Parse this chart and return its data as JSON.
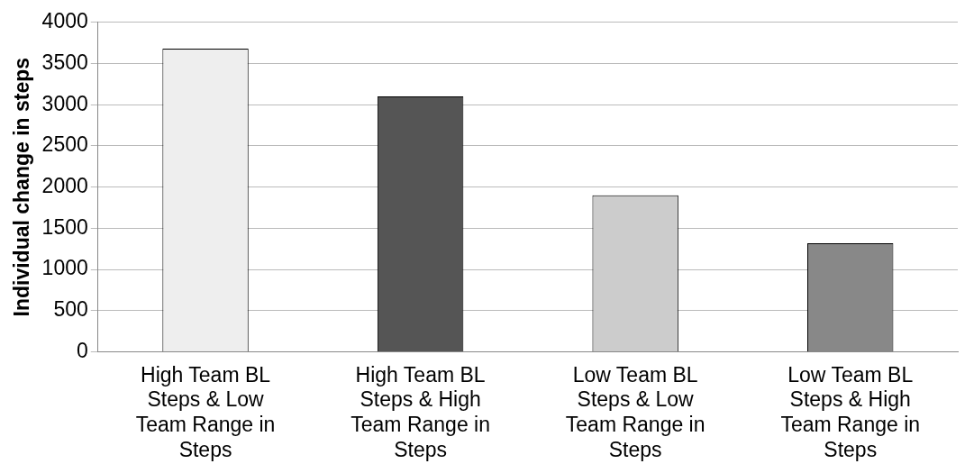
{
  "chart_data": {
    "type": "bar",
    "ylabel": "Individual change in steps",
    "categories": [
      "High Team BL Steps & Low Team Range in Steps",
      "High Team BL Steps & High Team Range in Steps",
      "Low Team BL Steps & Low Team Range in Steps",
      "Low Team BL Steps & High Team Range in Steps"
    ],
    "values": [
      3680,
      3100,
      1900,
      1320
    ],
    "colors": [
      "#eeeeee",
      "#555555",
      "#cccccc",
      "#888888"
    ],
    "ylim": [
      0,
      4000
    ],
    "yticks": [
      0,
      500,
      1000,
      1500,
      2000,
      2500,
      3000,
      3500,
      4000
    ],
    "grid": "y",
    "legend": false
  }
}
